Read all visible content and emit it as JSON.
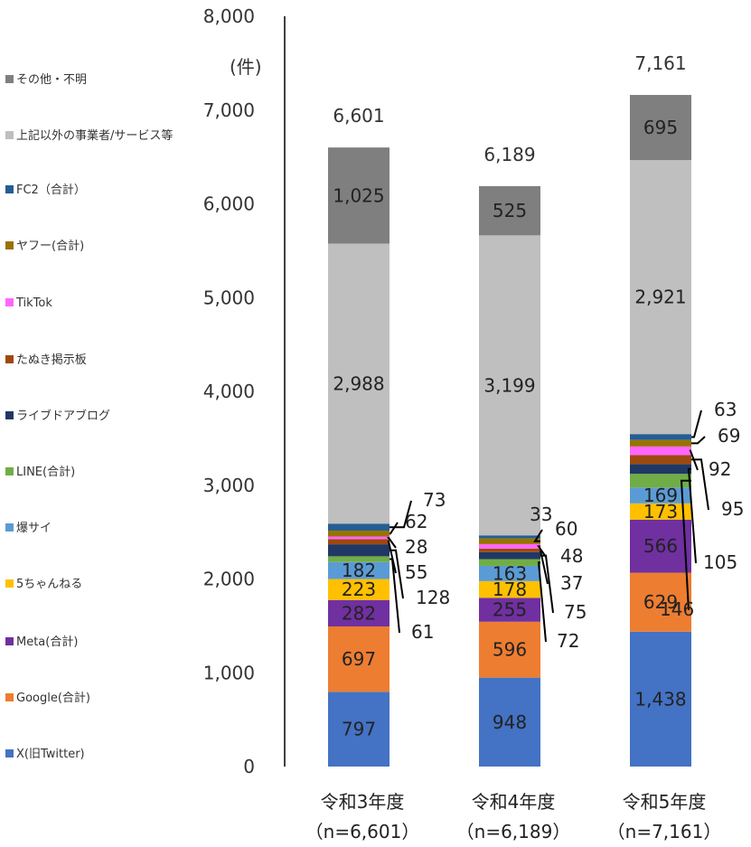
{
  "chart_data": {
    "type": "bar",
    "stacked": true,
    "unit_label": "(件)",
    "categories": [
      "令和3年度",
      "令和4年度",
      "令和5年度"
    ],
    "category_sublabels": [
      "（n=6,601）",
      "（n=6,189）",
      "（n=7,161）"
    ],
    "totals": [
      "6,601",
      "6,189",
      "7,161"
    ],
    "ylim": [
      0,
      8000
    ],
    "yticks": [
      "0",
      "1,000",
      "2,000",
      "3,000",
      "4,000",
      "5,000",
      "6,000",
      "7,000",
      "8,000"
    ],
    "grid": false,
    "legend_position": "left",
    "series": [
      {
        "name": "X(旧Twitter)",
        "color": "#4472C4",
        "values": [
          797,
          948,
          1438
        ],
        "labels": [
          "797",
          "948",
          "1,438"
        ]
      },
      {
        "name": "Google(合計)",
        "color": "#ED7D31",
        "values": [
          697,
          596,
          629
        ],
        "labels": [
          "697",
          "596",
          "629"
        ]
      },
      {
        "name": "Meta(合計)",
        "color": "#7030A0",
        "values": [
          282,
          255,
          566
        ],
        "labels": [
          "282",
          "255",
          "566"
        ]
      },
      {
        "name": "5ちゃんねる",
        "color": "#FFC000",
        "values": [
          223,
          178,
          173
        ],
        "labels": [
          "223",
          "178",
          "173"
        ]
      },
      {
        "name": "爆サイ",
        "color": "#5B9BD5",
        "values": [
          182,
          163,
          169
        ],
        "labels": [
          "182",
          "163",
          "169"
        ]
      },
      {
        "name": "LINE(合計)",
        "color": "#70AD47",
        "values": [
          61,
          72,
          146
        ],
        "labels": [
          "61",
          "72",
          "146"
        ]
      },
      {
        "name": "ライブドアブログ",
        "color": "#203864",
        "values": [
          128,
          75,
          105
        ],
        "labels": [
          "128",
          "75",
          "105"
        ]
      },
      {
        "name": "たぬき掲示板",
        "color": "#9E480E",
        "values": [
          55,
          37,
          95
        ],
        "labels": [
          "55",
          "37",
          "95"
        ]
      },
      {
        "name": "TikTok",
        "color": "#FF66FF",
        "values": [
          28,
          48,
          92
        ],
        "labels": [
          "28",
          "48",
          "92"
        ]
      },
      {
        "name": "ヤフー(合計)",
        "color": "#997300",
        "values": [
          62,
          60,
          69
        ],
        "labels": [
          "62",
          "60",
          "69"
        ]
      },
      {
        "name": "FC2（合計）",
        "color": "#255E91",
        "values": [
          73,
          33,
          63
        ],
        "labels": [
          "73",
          "33",
          "63"
        ]
      },
      {
        "name": "上記以外の事業者/サービス等",
        "color": "#BFBFBF",
        "values": [
          2988,
          3199,
          2921
        ],
        "labels": [
          "2,988",
          "3,199",
          "2,921"
        ]
      },
      {
        "name": "その他・不明",
        "color": "#7F7F7F",
        "values": [
          1025,
          525,
          695
        ],
        "labels": [
          "1,025",
          "525",
          "695"
        ]
      }
    ]
  }
}
